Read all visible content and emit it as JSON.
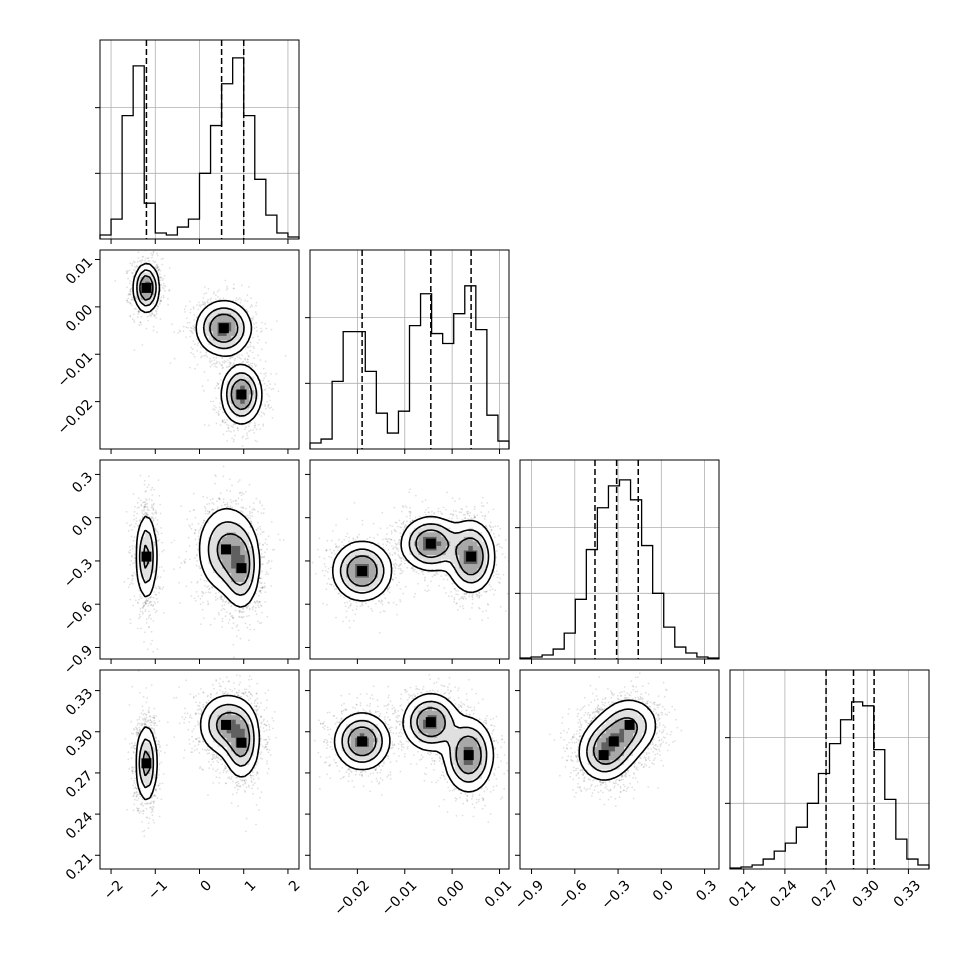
{
  "chart_data": {
    "type": "corner",
    "grid": true,
    "params": [
      {
        "id": "p1",
        "range": [
          -2.25,
          2.25
        ],
        "ticks": [
          -2,
          -1,
          0,
          1,
          2
        ],
        "tick_labels": [
          "−2",
          "−1",
          "0",
          "1",
          "2"
        ],
        "quantiles": [
          -1.2,
          0.5,
          1.0
        ],
        "hist": [
          0.02,
          0.1,
          0.62,
          0.87,
          0.18,
          0.03,
          0.02,
          0.06,
          0.1,
          0.33,
          0.57,
          0.78,
          0.91,
          0.62,
          0.3,
          0.12,
          0.03,
          0.01
        ],
        "clusters": [
          {
            "mean": -1.2,
            "sd": 0.14
          },
          {
            "mean": 0.55,
            "sd": 0.3
          },
          {
            "mean": 0.95,
            "sd": 0.22
          }
        ]
      },
      {
        "id": "p2",
        "range": [
          -0.03,
          0.012
        ],
        "ticks": [
          -0.02,
          -0.01,
          0.0,
          0.01
        ],
        "tick_labels": [
          "−0.02",
          "−0.01",
          "0.00",
          "0.01"
        ],
        "quantiles": [
          -0.019,
          -0.0045,
          0.004
        ],
        "hist": [
          0.03,
          0.05,
          0.34,
          0.59,
          0.59,
          0.39,
          0.18,
          0.08,
          0.19,
          0.62,
          0.78,
          0.58,
          0.53,
          0.68,
          0.82,
          0.6,
          0.17,
          0.04
        ],
        "clusters": [
          {
            "mean": 0.004,
            "sd": 0.0025
          },
          {
            "mean": -0.0045,
            "sd": 0.003
          },
          {
            "mean": -0.019,
            "sd": 0.003
          }
        ]
      },
      {
        "id": "p3",
        "range": [
          -0.98,
          0.4
        ],
        "ticks": [
          -0.9,
          -0.6,
          -0.3,
          0.0,
          0.3
        ],
        "tick_labels": [
          "−0.9",
          "−0.6",
          "−0.3",
          "0.0",
          "0.3"
        ],
        "quantiles": [
          -0.46,
          -0.31,
          -0.16
        ],
        "hist": [
          0.005,
          0.01,
          0.02,
          0.05,
          0.13,
          0.3,
          0.55,
          0.76,
          0.87,
          0.9,
          0.8,
          0.57,
          0.33,
          0.16,
          0.06,
          0.03,
          0.01,
          0.005
        ],
        "clusters": [
          {
            "mean": -0.25,
            "sd": 0.09
          },
          {
            "mean": -0.28,
            "sd": 0.13
          },
          {
            "mean": -0.37,
            "sd": 0.09
          }
        ]
      },
      {
        "id": "p4",
        "range": [
          0.2,
          0.345
        ],
        "ticks": [
          0.21,
          0.24,
          0.27,
          0.3,
          0.33
        ],
        "tick_labels": [
          "0.21",
          "0.24",
          "0.27",
          "0.30",
          "0.33"
        ],
        "quantiles": [
          0.27,
          0.29,
          0.305
        ],
        "hist": [
          0.005,
          0.01,
          0.02,
          0.05,
          0.09,
          0.13,
          0.21,
          0.33,
          0.48,
          0.63,
          0.75,
          0.84,
          0.82,
          0.6,
          0.35,
          0.15,
          0.05,
          0.02
        ],
        "clusters": [
          {
            "mean": 0.275,
            "sd": 0.012
          },
          {
            "mean": 0.297,
            "sd": 0.011
          },
          {
            "mean": 0.292,
            "sd": 0.012
          }
        ]
      }
    ],
    "pairs": [
      {
        "row": 1,
        "col": 0,
        "blobs": [
          {
            "cx": -1.2,
            "cy": 0.004,
            "sx": 0.14,
            "sy": 0.0025
          },
          {
            "cx": 0.55,
            "cy": -0.0045,
            "sx": 0.3,
            "sy": 0.0028
          },
          {
            "cx": 0.95,
            "cy": -0.0185,
            "sx": 0.22,
            "sy": 0.003
          }
        ]
      },
      {
        "row": 2,
        "col": 0,
        "blobs": [
          {
            "cx": -1.2,
            "cy": -0.27,
            "sx": 0.12,
            "sy": 0.15
          },
          {
            "cx": 0.6,
            "cy": -0.22,
            "sx": 0.32,
            "sy": 0.15
          },
          {
            "cx": 0.95,
            "cy": -0.35,
            "sx": 0.2,
            "sy": 0.14
          }
        ]
      },
      {
        "row": 2,
        "col": 1,
        "blobs": [
          {
            "cx": -0.019,
            "cy": -0.37,
            "sx": 0.003,
            "sy": 0.1
          },
          {
            "cx": -0.0045,
            "cy": -0.18,
            "sx": 0.003,
            "sy": 0.09
          },
          {
            "cx": 0.004,
            "cy": -0.27,
            "sx": 0.0024,
            "sy": 0.12
          }
        ]
      },
      {
        "row": 3,
        "col": 0,
        "blobs": [
          {
            "cx": -1.2,
            "cy": 0.277,
            "sx": 0.12,
            "sy": 0.014
          },
          {
            "cx": 0.6,
            "cy": 0.305,
            "sx": 0.3,
            "sy": 0.011
          },
          {
            "cx": 0.95,
            "cy": 0.292,
            "sx": 0.2,
            "sy": 0.013
          }
        ]
      },
      {
        "row": 3,
        "col": 1,
        "blobs": [
          {
            "cx": -0.019,
            "cy": 0.293,
            "sx": 0.0028,
            "sy": 0.01
          },
          {
            "cx": -0.0045,
            "cy": 0.307,
            "sx": 0.0028,
            "sy": 0.01
          },
          {
            "cx": 0.0035,
            "cy": 0.283,
            "sx": 0.0025,
            "sy": 0.013
          }
        ]
      },
      {
        "row": 3,
        "col": 2,
        "blobs": [
          {
            "cx": -0.33,
            "cy": 0.293,
            "sx": 0.1,
            "sy": 0.01
          },
          {
            "cx": -0.22,
            "cy": 0.305,
            "sx": 0.1,
            "sy": 0.01
          },
          {
            "cx": -0.4,
            "cy": 0.283,
            "sx": 0.09,
            "sy": 0.01
          }
        ]
      }
    ]
  }
}
